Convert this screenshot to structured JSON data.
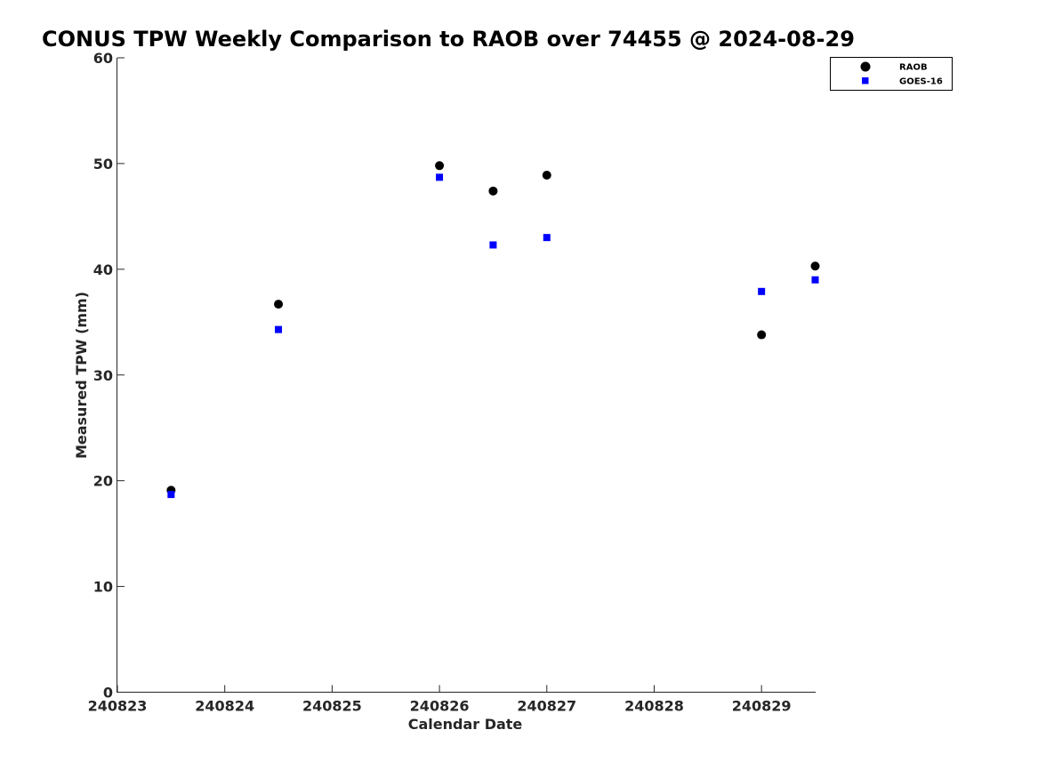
{
  "chart_data": {
    "type": "scatter",
    "title": "CONUS TPW Weekly Comparison to RAOB over 74455 @ 2024-08-29",
    "xlabel": "Calendar Date",
    "ylabel": "Measured TPW (mm)",
    "xlim": [
      240823,
      240829.5
    ],
    "ylim": [
      0,
      60
    ],
    "x_ticks": [
      "240823",
      "240824",
      "240825",
      "240826",
      "240827",
      "240828",
      "240829"
    ],
    "y_ticks": [
      "0",
      "10",
      "20",
      "30",
      "40",
      "50",
      "60"
    ],
    "grid": false,
    "legend_position": "top-right",
    "series": [
      {
        "name": "RAOB",
        "marker": "circle",
        "color": "#000000",
        "points": [
          {
            "x": 240823.5,
            "y": 19.1
          },
          {
            "x": 240824.5,
            "y": 36.7
          },
          {
            "x": 240826.0,
            "y": 49.8
          },
          {
            "x": 240826.5,
            "y": 47.4
          },
          {
            "x": 240827.0,
            "y": 48.9
          },
          {
            "x": 240829.0,
            "y": 33.8
          },
          {
            "x": 240829.5,
            "y": 40.3
          }
        ]
      },
      {
        "name": "GOES-16",
        "marker": "square",
        "color": "#0000ff",
        "points": [
          {
            "x": 240823.5,
            "y": 18.7
          },
          {
            "x": 240824.5,
            "y": 34.3
          },
          {
            "x": 240826.0,
            "y": 48.7
          },
          {
            "x": 240826.5,
            "y": 42.3
          },
          {
            "x": 240827.0,
            "y": 43.0
          },
          {
            "x": 240829.0,
            "y": 37.9
          },
          {
            "x": 240829.5,
            "y": 39.0
          }
        ]
      }
    ]
  }
}
